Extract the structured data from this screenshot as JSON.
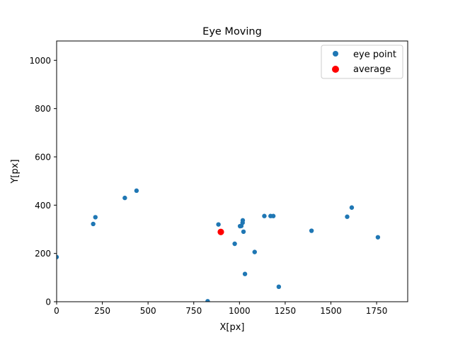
{
  "chart_data": {
    "type": "scatter",
    "title": "Eye Moving",
    "xlabel": "X[px]",
    "ylabel": "Y[px]",
    "xlim": [
      0,
      1920
    ],
    "ylim": [
      0,
      1080
    ],
    "xticks": [
      0,
      250,
      500,
      750,
      1000,
      1250,
      1500,
      1750
    ],
    "yticks": [
      0,
      200,
      400,
      600,
      800,
      1000
    ],
    "grid": false,
    "legend_position": "top-right",
    "series": [
      {
        "name": "eye point",
        "color": "#1f77b4",
        "marker": "circle",
        "points": [
          {
            "x": 0,
            "y": 185
          },
          {
            "x": 200,
            "y": 322
          },
          {
            "x": 212,
            "y": 350
          },
          {
            "x": 373,
            "y": 430
          },
          {
            "x": 437,
            "y": 460
          },
          {
            "x": 826,
            "y": 2
          },
          {
            "x": 885,
            "y": 320
          },
          {
            "x": 974,
            "y": 240
          },
          {
            "x": 1003,
            "y": 313
          },
          {
            "x": 1010,
            "y": 314
          },
          {
            "x": 1017,
            "y": 327
          },
          {
            "x": 1018,
            "y": 337
          },
          {
            "x": 1022,
            "y": 290
          },
          {
            "x": 1030,
            "y": 115
          },
          {
            "x": 1083,
            "y": 206
          },
          {
            "x": 1136,
            "y": 355
          },
          {
            "x": 1170,
            "y": 355
          },
          {
            "x": 1185,
            "y": 355
          },
          {
            "x": 1215,
            "y": 62
          },
          {
            "x": 1394,
            "y": 294
          },
          {
            "x": 1589,
            "y": 352
          },
          {
            "x": 1614,
            "y": 390
          },
          {
            "x": 1757,
            "y": 267
          }
        ]
      },
      {
        "name": "average",
        "color": "#ff0000",
        "marker": "circle",
        "points": [
          {
            "x": 898,
            "y": 289
          }
        ]
      }
    ]
  }
}
